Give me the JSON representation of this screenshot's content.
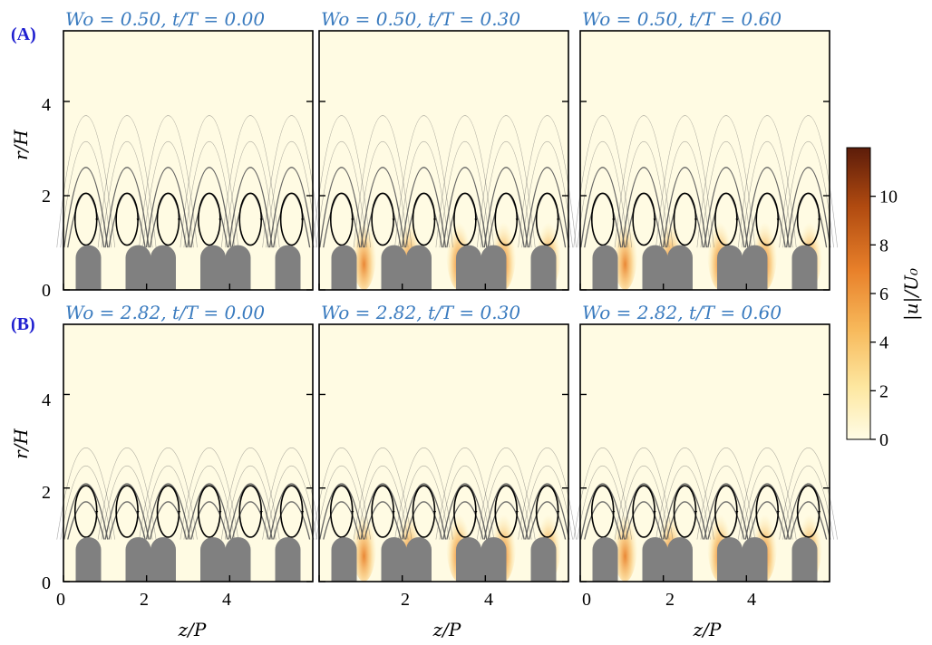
{
  "figure": {
    "row_labels": [
      "(A)",
      "(B)"
    ],
    "panel_titles": [
      [
        "Wo = 0.50, t/T = 0.00",
        "Wo = 0.50, t/T = 0.30",
        "Wo = 0.50, t/T = 0.60"
      ],
      [
        "Wo = 2.82, t/T = 0.00",
        "Wo = 2.82, t/T = 0.30",
        "Wo = 2.82, t/T = 0.60"
      ]
    ],
    "y_axis_label": "r/H",
    "x_axis_label": "z/P",
    "y_ticks": [
      "0",
      "2",
      "4"
    ],
    "x_ticks": [
      "0",
      "2",
      "4"
    ],
    "colorbar": {
      "label": "|u|/U₀",
      "ticks": [
        "0",
        "2",
        "4",
        "6",
        "8",
        "10"
      ],
      "colors": [
        "#fffce6",
        "#fde7a0",
        "#f7b85a",
        "#e8802a",
        "#b04a10",
        "#5c1c0a"
      ]
    },
    "colors": {
      "background": "#fffbe3",
      "obstacle": "#808080",
      "streamline": "#000000",
      "title": "#3a7bbf",
      "row_label": "#1f1fd0"
    }
  }
}
